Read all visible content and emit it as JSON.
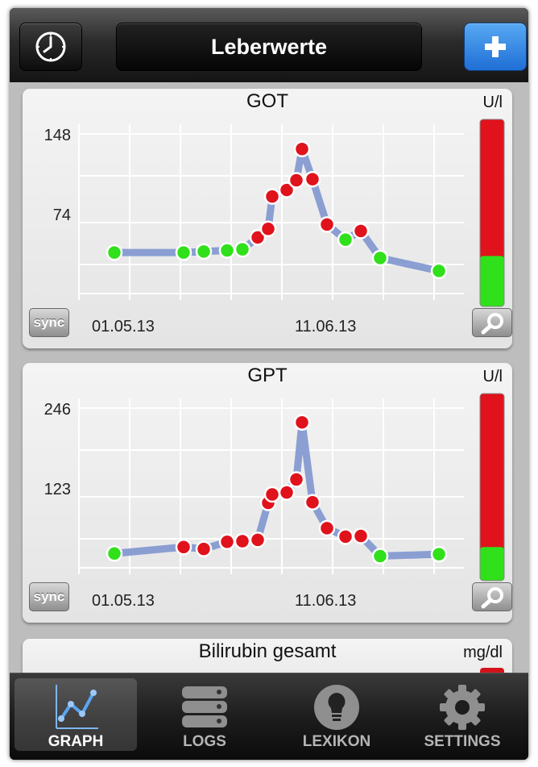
{
  "navbar": {
    "title": "Leberwerte",
    "left_icon": "clock-icon",
    "right_icon": "plus-icon"
  },
  "charts": [
    {
      "title": "GOT",
      "unit": "U/l",
      "y_ticks": [
        "148",
        "74"
      ],
      "date_labels": [
        "01.05.13",
        "11.06.13"
      ],
      "sync_label": "sync",
      "threshold_fraction": 0.27
    },
    {
      "title": "GPT",
      "unit": "U/l",
      "y_ticks": [
        "246",
        "123"
      ],
      "date_labels": [
        "01.05.13",
        "11.06.13"
      ],
      "sync_label": "sync",
      "threshold_fraction": 0.18
    },
    {
      "title": "Bilirubin gesamt",
      "unit": "mg/dl"
    }
  ],
  "chart_data": [
    {
      "type": "line",
      "title": "GOT",
      "ylabel": "U/l",
      "y_ticks": [
        74,
        148
      ],
      "ylim": [
        0,
        148
      ],
      "x_labels": [
        "01.05.13",
        "11.06.13"
      ],
      "grid": true,
      "series": [
        {
          "values": [
            38,
            38,
            39,
            40,
            41,
            52,
            60,
            90,
            96,
            105,
            134,
            106,
            64,
            50,
            58,
            33,
            21
          ],
          "status": [
            "normal",
            "normal",
            "normal",
            "normal",
            "normal",
            "high",
            "high",
            "high",
            "high",
            "high",
            "high",
            "high",
            "high",
            "normal",
            "high",
            "normal",
            "normal"
          ]
        }
      ]
    },
    {
      "type": "line",
      "title": "GPT",
      "ylabel": "U/l",
      "y_ticks": [
        123,
        246
      ],
      "ylim": [
        0,
        246
      ],
      "x_labels": [
        "01.05.13",
        "11.06.13"
      ],
      "grid": true,
      "series": [
        {
          "values": [
            22,
            32,
            29,
            40,
            41,
            43,
            100,
            113,
            116,
            136,
            224,
            101,
            61,
            48,
            49,
            18,
            21
          ],
          "status": [
            "normal",
            "high",
            "high",
            "high",
            "high",
            "high",
            "high",
            "high",
            "high",
            "high",
            "high",
            "high",
            "high",
            "high",
            "high",
            "normal",
            "normal"
          ]
        }
      ]
    }
  ],
  "colors": {
    "high": "#e0121b",
    "normal": "#30e01a",
    "line": "#7f96cf",
    "nav_accent": "#2f86e6"
  },
  "tabs": [
    {
      "label": "GRAPH",
      "icon": "graph-icon",
      "active": true
    },
    {
      "label": "LOGS",
      "icon": "logs-icon",
      "active": false
    },
    {
      "label": "LEXIKON",
      "icon": "lightbulb-icon",
      "active": false
    },
    {
      "label": "SETTINGS",
      "icon": "gear-icon",
      "active": false
    }
  ]
}
